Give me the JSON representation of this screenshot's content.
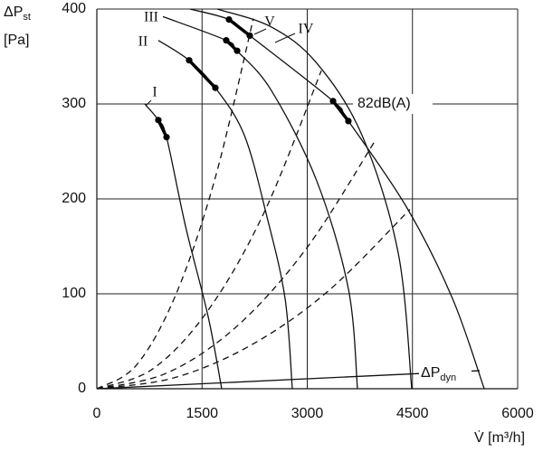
{
  "chart_data": {
    "type": "line",
    "y_label": "ΔP",
    "y_label_sub": "st",
    "y_label_unit": "[Pa]",
    "x_label": "V̇ [m³/h]",
    "xlim": [
      0,
      6000
    ],
    "ylim": [
      0,
      400
    ],
    "xticks": [
      0,
      1500,
      3000,
      4500,
      6000
    ],
    "yticks": [
      0,
      100,
      200,
      300,
      400
    ],
    "grid": true,
    "annotation": "82dB(A)",
    "series": [
      {
        "name": "I",
        "style": "solid",
        "color": "#111",
        "x": [
          684,
          877,
          994,
          1265,
          1587,
          1780
        ],
        "values": [
          300,
          283,
          265,
          171,
          76,
          0
        ],
        "marked_x": [
          877,
          994
        ],
        "marked_values": [
          283,
          265
        ]
      },
      {
        "name": "II",
        "style": "solid",
        "color": "#111",
        "x": [
          877,
          1316,
          1690,
          2103,
          2426,
          2684,
          2787
        ],
        "values": [
          367,
          346,
          317,
          267,
          181,
          95,
          0
        ],
        "marked_x": [
          1316,
          1690
        ],
        "marked_values": [
          346,
          317
        ]
      },
      {
        "name": "III",
        "style": "solid",
        "color": "#111",
        "x": [
          942,
          1845,
          2000,
          2490,
          3135,
          3587,
          3716
        ],
        "values": [
          392,
          367,
          356,
          314,
          219,
          105,
          0
        ],
        "marked_x": [
          1845,
          2000
        ],
        "marked_values": [
          367,
          356
        ]
      },
      {
        "name": "IV",
        "style": "solid",
        "color": "#111",
        "x": [
          1716,
          2490,
          3135,
          3781,
          4297,
          4490
        ],
        "values": [
          400,
          381,
          343,
          267,
          143,
          0
        ]
      },
      {
        "name": "V",
        "style": "solid",
        "color": "#111",
        "x": [
          1329,
          1884,
          2181,
          3368,
          3587,
          4426,
          5071,
          5523
        ],
        "values": [
          400,
          389,
          372,
          303,
          282,
          190,
          95,
          0
        ],
        "marked_x": [
          1884,
          2181,
          3368,
          3587
        ],
        "marked_values": [
          389,
          372,
          303,
          282
        ]
      },
      {
        "style": "dashed",
        "color": "#111",
        "x": [
          0,
          560,
          1120,
          1680,
          2232
        ],
        "values": [
          0,
          24.5,
          98,
          220,
          390
        ]
      },
      {
        "style": "dashed",
        "color": "#111",
        "x": [
          0,
          800,
          1600,
          2400,
          3200
        ],
        "values": [
          0,
          21,
          84,
          188,
          335
        ]
      },
      {
        "style": "dashed",
        "color": "#111",
        "x": [
          0,
          1000,
          2000,
          3000,
          3974
        ],
        "values": [
          0,
          16.6,
          66,
          149,
          262
        ]
      },
      {
        "style": "dashed",
        "color": "#111",
        "x": [
          0,
          1100,
          2200,
          3300,
          4465
        ],
        "values": [
          0,
          11.5,
          46,
          103,
          189
        ]
      },
      {
        "name": "ΔP",
        "name_sub": "dyn",
        "style": "solid",
        "color": "#111",
        "x": [
          0,
          5458
        ],
        "values": [
          0,
          19
        ]
      }
    ]
  }
}
